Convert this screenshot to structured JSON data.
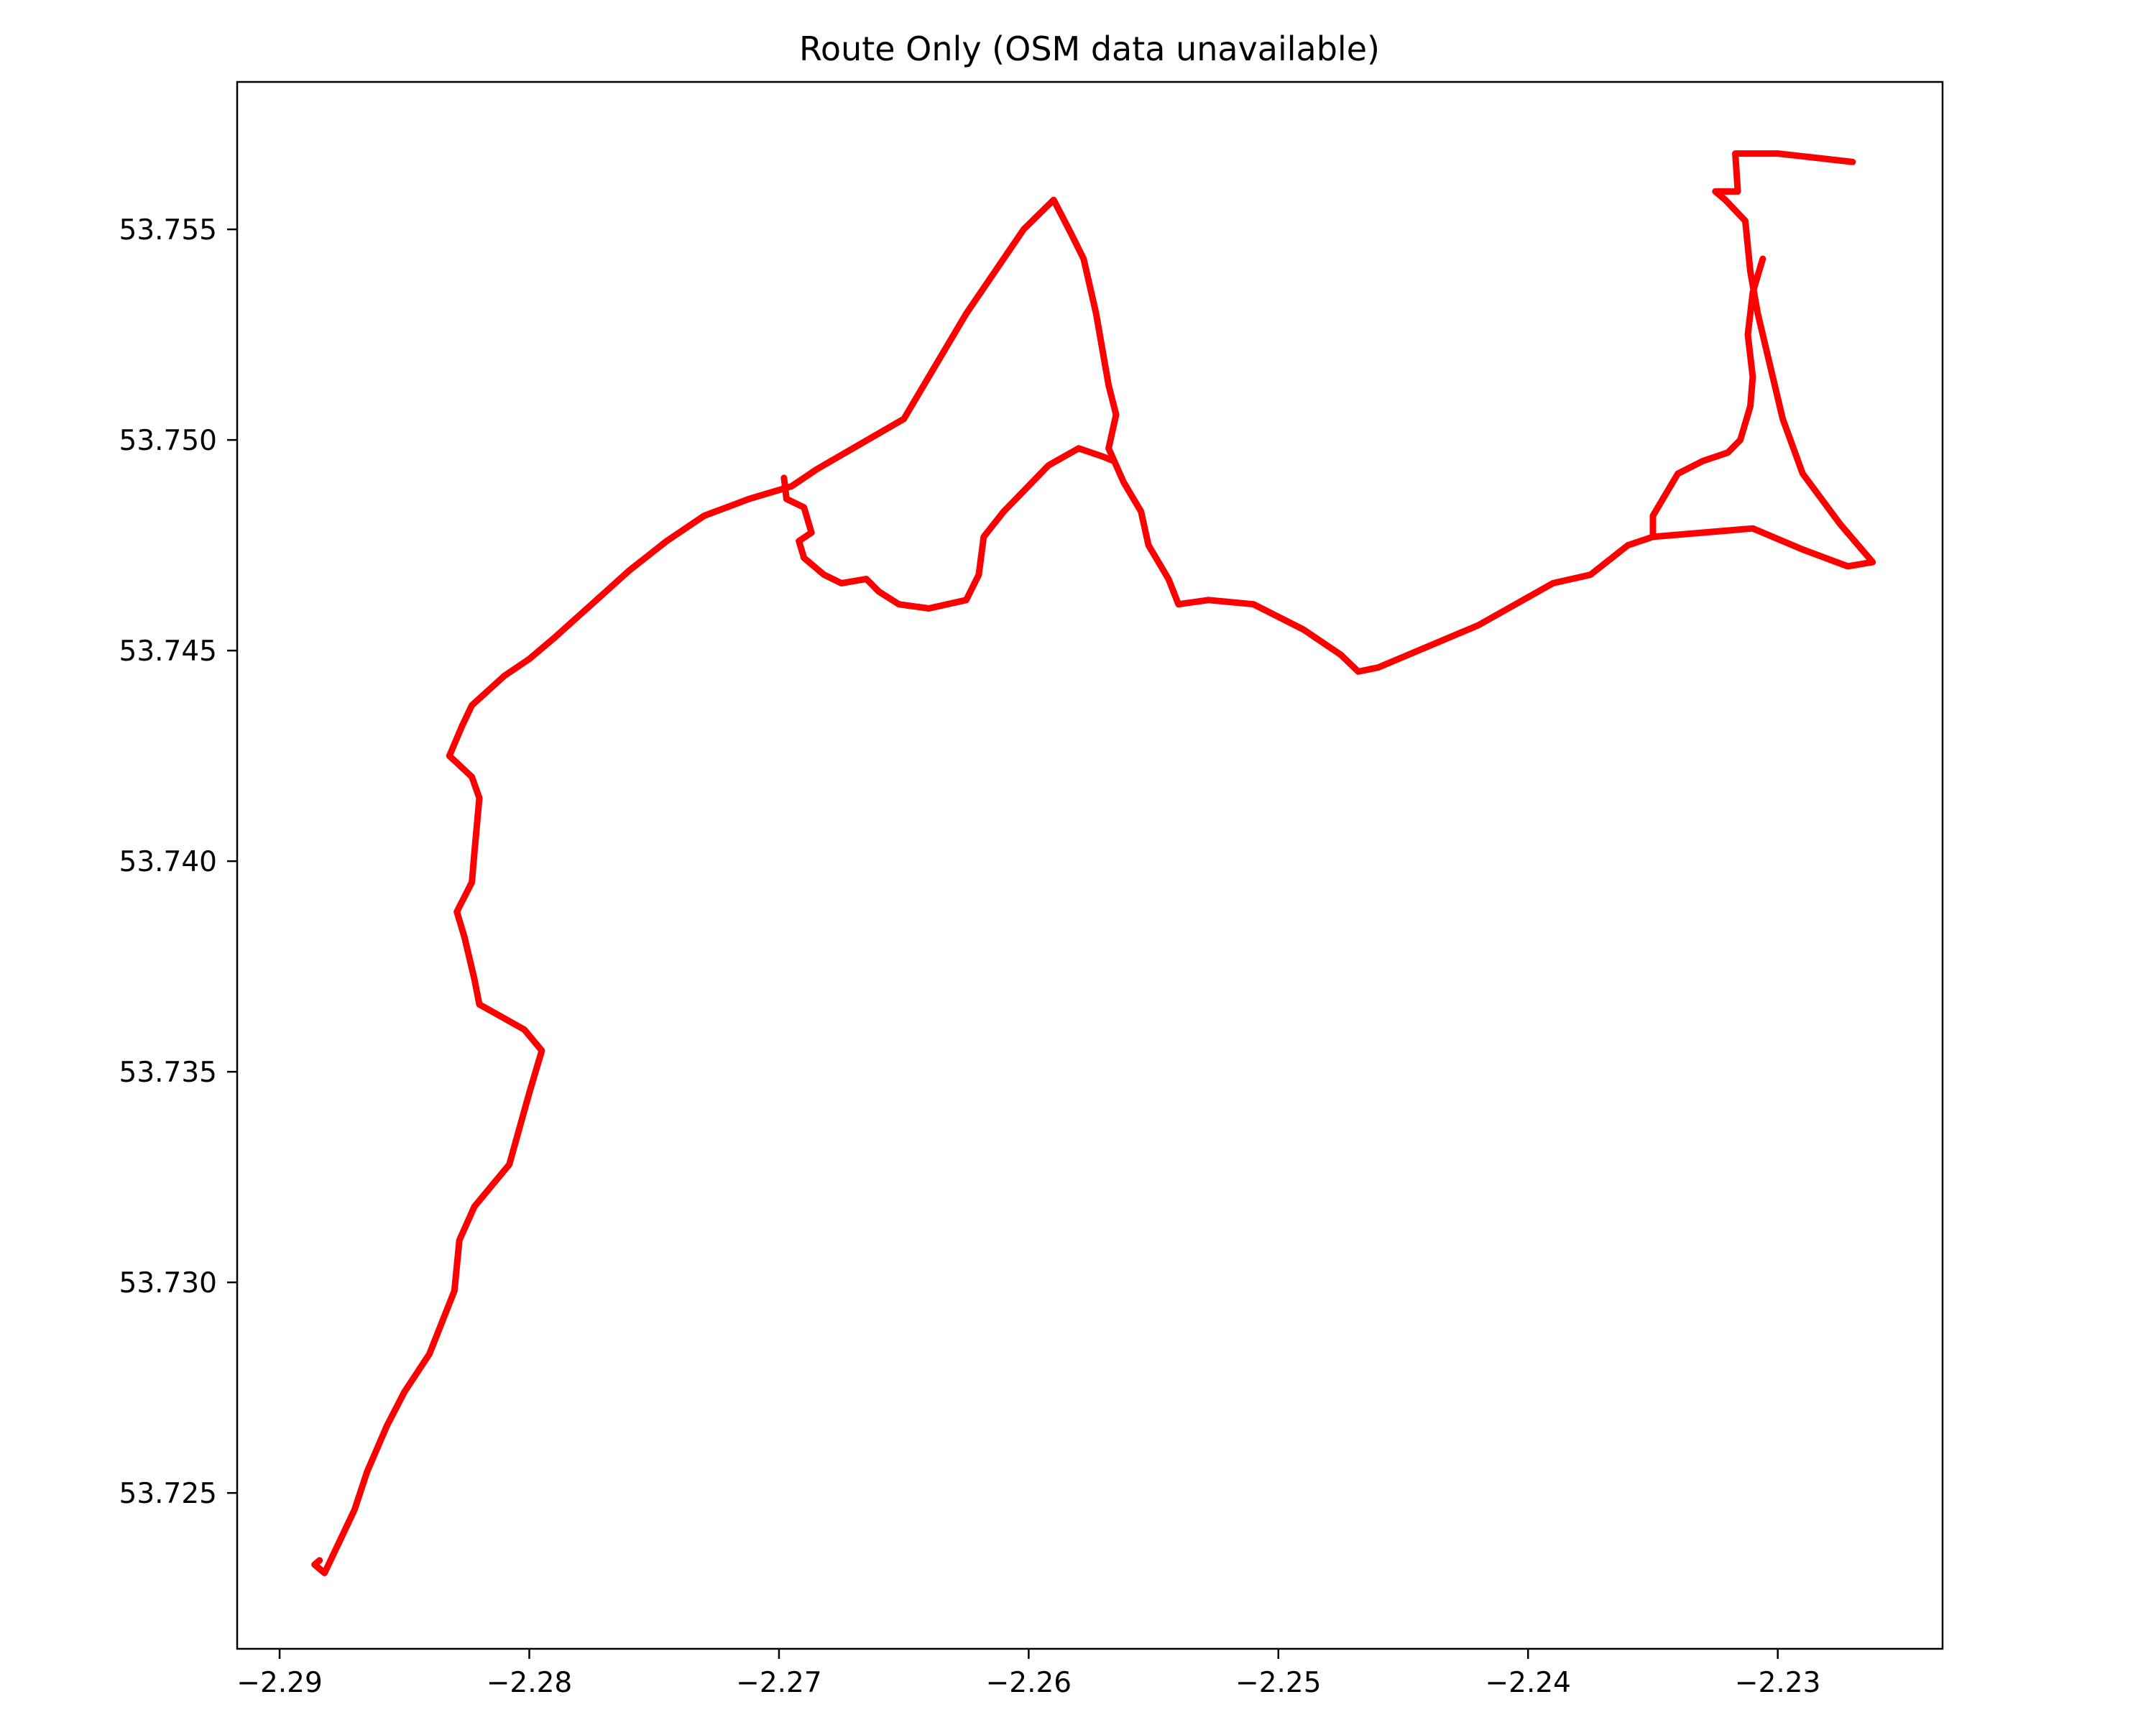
{
  "chart_data": {
    "type": "line",
    "title": "Route Only (OSM data unavailable)",
    "xlabel": "",
    "ylabel": "",
    "xlim": [
      -2.2917,
      -2.2234
    ],
    "ylim": [
      53.7213,
      53.7585
    ],
    "grid": false,
    "legend": "none",
    "x_ticks": [
      {
        "value": -2.29,
        "label": "−2.29"
      },
      {
        "value": -2.28,
        "label": "−2.28"
      },
      {
        "value": -2.27,
        "label": "−2.27"
      },
      {
        "value": -2.26,
        "label": "−2.26"
      },
      {
        "value": -2.25,
        "label": "−2.25"
      },
      {
        "value": -2.24,
        "label": "−2.24"
      },
      {
        "value": -2.23,
        "label": "−2.23"
      }
    ],
    "y_ticks": [
      {
        "value": 53.725,
        "label": "53.725"
      },
      {
        "value": 53.73,
        "label": "53.730"
      },
      {
        "value": 53.735,
        "label": "53.735"
      },
      {
        "value": 53.74,
        "label": "53.740"
      },
      {
        "value": 53.745,
        "label": "53.745"
      },
      {
        "value": 53.75,
        "label": "53.750"
      },
      {
        "value": 53.755,
        "label": "53.755"
      }
    ],
    "series": [
      {
        "color": "#ff0000",
        "points": [
          [
            -2.2884,
            53.7234
          ],
          [
            -2.2886,
            53.7233
          ],
          [
            -2.2882,
            53.7231
          ],
          [
            -2.2878,
            53.7236
          ],
          [
            -2.287,
            53.7246
          ],
          [
            -2.2865,
            53.7255
          ],
          [
            -2.2857,
            53.7266
          ],
          [
            -2.285,
            53.7274
          ],
          [
            -2.284,
            53.7283
          ],
          [
            -2.283,
            53.7298
          ],
          [
            -2.2828,
            53.731
          ],
          [
            -2.2822,
            53.7318
          ],
          [
            -2.2808,
            53.7328
          ],
          [
            -2.28,
            53.7345
          ],
          [
            -2.2795,
            53.7355
          ],
          [
            -2.2802,
            53.736
          ],
          [
            -2.282,
            53.7366
          ],
          [
            -2.2822,
            53.7372
          ],
          [
            -2.2826,
            53.7382
          ],
          [
            -2.2829,
            53.7388
          ],
          [
            -2.2823,
            53.7395
          ],
          [
            -2.2822,
            53.7402
          ],
          [
            -2.282,
            53.7415
          ],
          [
            -2.2823,
            53.742
          ],
          [
            -2.2832,
            53.7425
          ],
          [
            -2.2827,
            53.7432
          ],
          [
            -2.2823,
            53.7437
          ],
          [
            -2.281,
            53.7444
          ],
          [
            -2.28,
            53.7448
          ],
          [
            -2.279,
            53.7453
          ],
          [
            -2.2775,
            53.7461
          ],
          [
            -2.276,
            53.7469
          ],
          [
            -2.2745,
            53.7476
          ],
          [
            -2.273,
            53.7482
          ],
          [
            -2.2712,
            53.7486
          ],
          [
            -2.2695,
            53.7489
          ],
          [
            -2.2685,
            53.7493
          ],
          [
            -2.265,
            53.7505
          ],
          [
            -2.264,
            53.7515
          ],
          [
            -2.2625,
            53.753
          ],
          [
            -2.2602,
            53.755
          ],
          [
            -2.259,
            53.7557
          ],
          [
            -2.2583,
            53.7549
          ],
          [
            -2.2578,
            53.7543
          ],
          [
            -2.2573,
            53.753
          ],
          [
            -2.2568,
            53.7513
          ],
          [
            -2.2565,
            53.7506
          ],
          [
            -2.2568,
            53.7498
          ],
          [
            -2.2562,
            53.749
          ],
          [
            -2.2555,
            53.7483
          ],
          [
            -2.2552,
            53.7475
          ],
          [
            -2.2544,
            53.7467
          ],
          [
            -2.254,
            53.7461
          ],
          [
            -2.2528,
            53.7462
          ],
          [
            -2.251,
            53.7461
          ],
          [
            -2.249,
            53.7455
          ],
          [
            -2.2475,
            53.7449
          ],
          [
            -2.2468,
            53.7445
          ],
          [
            -2.246,
            53.7446
          ],
          [
            -2.242,
            53.7456
          ],
          [
            -2.239,
            53.7466
          ],
          [
            -2.2375,
            53.7468
          ],
          [
            -2.236,
            53.7475
          ],
          [
            -2.235,
            53.7477
          ],
          [
            -2.231,
            53.7479
          ],
          [
            -2.229,
            53.7474
          ],
          [
            -2.2272,
            53.747
          ],
          [
            -2.2262,
            53.7471
          ],
          [
            -2.2275,
            53.748
          ],
          [
            -2.229,
            53.7492
          ],
          [
            -2.2298,
            53.7505
          ],
          [
            -2.2302,
            53.7515
          ],
          [
            -2.2308,
            53.753
          ],
          [
            -2.2311,
            53.754
          ],
          [
            -2.2313,
            53.7552
          ],
          [
            -2.2321,
            53.7557
          ],
          [
            -2.2325,
            53.7559
          ],
          [
            -2.2316,
            53.7559
          ],
          [
            -2.2317,
            53.7568
          ],
          [
            -2.23,
            53.7568
          ],
          [
            -2.227,
            53.7566
          ]
        ]
      },
      {
        "color": "#ff0000",
        "points": [
          [
            -2.2698,
            53.7491
          ],
          [
            -2.2697,
            53.7486
          ],
          [
            -2.269,
            53.7484
          ],
          [
            -2.2687,
            53.7478
          ],
          [
            -2.2692,
            53.7476
          ],
          [
            -2.269,
            53.7472
          ],
          [
            -2.2682,
            53.7468
          ],
          [
            -2.2675,
            53.7466
          ],
          [
            -2.2665,
            53.7467
          ],
          [
            -2.266,
            53.7464
          ],
          [
            -2.2652,
            53.7461
          ],
          [
            -2.264,
            53.746
          ],
          [
            -2.2625,
            53.7462
          ],
          [
            -2.262,
            53.7468
          ],
          [
            -2.2618,
            53.7477
          ],
          [
            -2.261,
            53.7483
          ],
          [
            -2.2592,
            53.7494
          ],
          [
            -2.258,
            53.7498
          ],
          [
            -2.257,
            53.7496
          ],
          [
            -2.2566,
            53.7495
          ]
        ]
      },
      {
        "color": "#ff0000",
        "points": [
          [
            -2.235,
            53.7477
          ],
          [
            -2.235,
            53.7482
          ],
          [
            -2.2345,
            53.7487
          ],
          [
            -2.234,
            53.7492
          ],
          [
            -2.233,
            53.7495
          ],
          [
            -2.232,
            53.7497
          ],
          [
            -2.2315,
            53.75
          ],
          [
            -2.2311,
            53.7508
          ],
          [
            -2.231,
            53.7515
          ],
          [
            -2.2312,
            53.7525
          ],
          [
            -2.231,
            53.7535
          ],
          [
            -2.2306,
            53.7543
          ]
        ]
      }
    ]
  }
}
